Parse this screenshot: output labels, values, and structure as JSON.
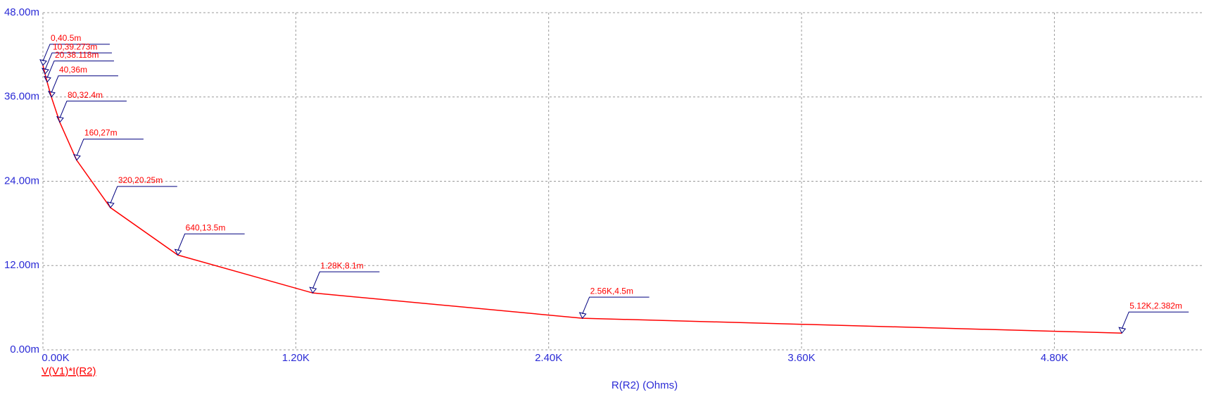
{
  "chart_data": {
    "type": "line",
    "x_label": "R(R2) (Ohms)",
    "x": [
      0,
      10,
      20,
      40,
      80,
      160,
      320,
      640,
      1280,
      2560,
      5120
    ],
    "series": [
      {
        "name": "V(V1)*I(R2)",
        "color": "#ff0000",
        "values": [
          0.0405,
          0.039273,
          0.038118,
          0.036,
          0.0324,
          0.027,
          0.02025,
          0.0135,
          0.0081,
          0.0045,
          0.002382
        ],
        "value_labels": [
          "0,40.5m",
          "10,39.273m",
          "20,38.118m",
          "40,36m",
          "80,32.4m",
          "160,27m",
          "320,20.25m",
          "640,13.5m",
          "1.28K,8.1m",
          "2.56K,4.5m",
          "5.12K,2.382m"
        ]
      }
    ],
    "xlim": [
      0,
      5500
    ],
    "ylim": [
      0,
      0.048
    ],
    "xticks": [
      {
        "value": 0,
        "label": "0.00K"
      },
      {
        "value": 1200,
        "label": "1.20K"
      },
      {
        "value": 2400,
        "label": "2.40K"
      },
      {
        "value": 3600,
        "label": "3.60K"
      },
      {
        "value": 4800,
        "label": "4.80K"
      }
    ],
    "yticks": [
      {
        "value": 0,
        "label": "0.00m"
      },
      {
        "value": 0.012,
        "label": "12.00m"
      },
      {
        "value": 0.024,
        "label": "24.00m"
      },
      {
        "value": 0.036,
        "label": "36.00m"
      },
      {
        "value": 0.048,
        "label": "48.00m"
      }
    ],
    "grid": true
  }
}
